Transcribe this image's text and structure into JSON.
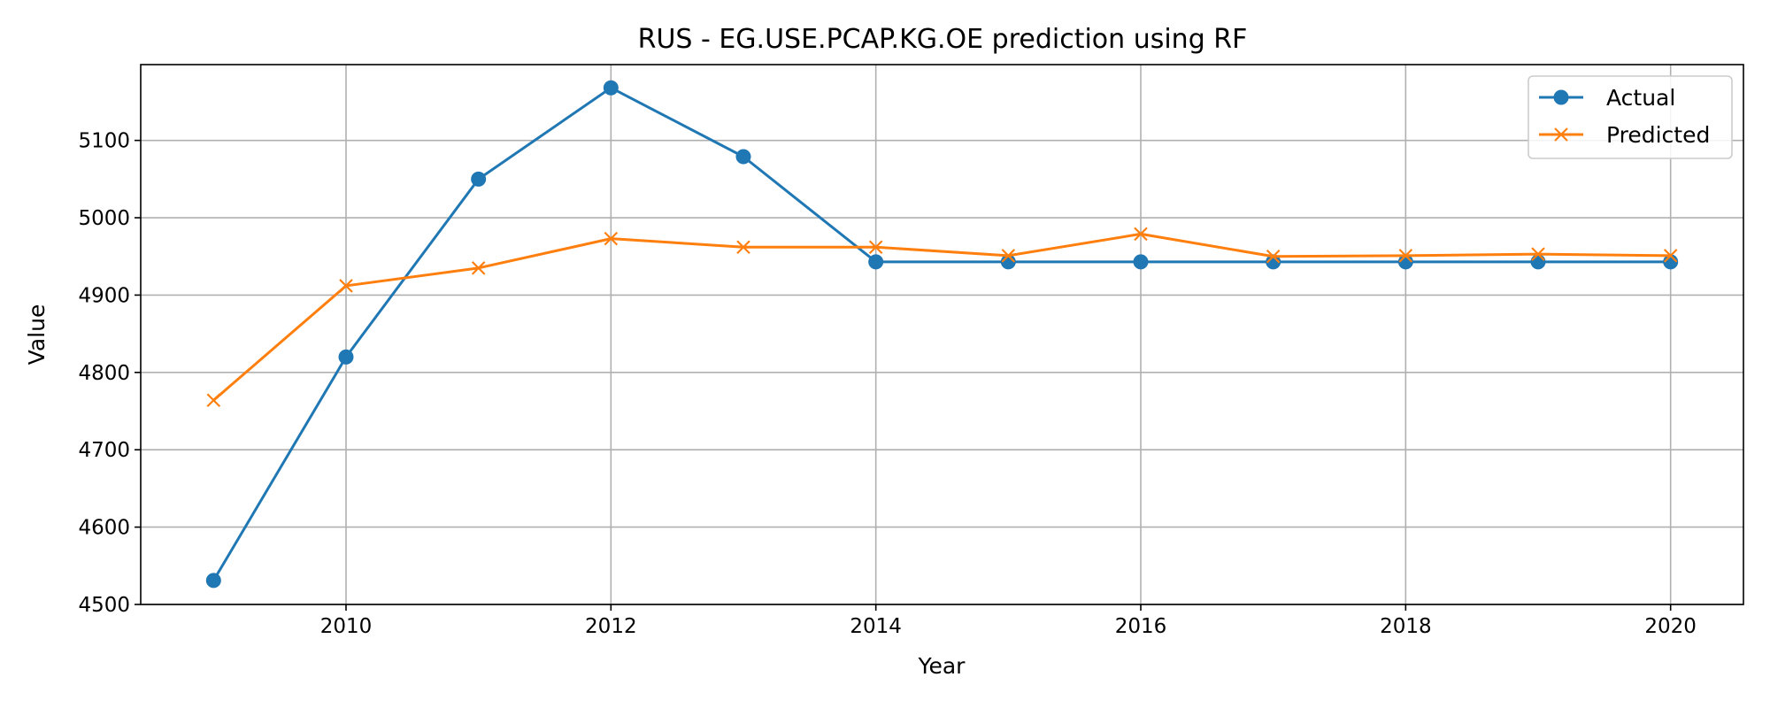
{
  "chart_data": {
    "type": "line",
    "title": "RUS - EG.USE.PCAP.KG.OE prediction using RF",
    "xlabel": "Year",
    "ylabel": "Value",
    "x": [
      2009,
      2010,
      2011,
      2012,
      2013,
      2014,
      2015,
      2016,
      2017,
      2018,
      2019,
      2020
    ],
    "xlim": [
      2008.45,
      2020.55
    ],
    "ylim": [
      4500,
      5198
    ],
    "x_ticks": [
      2010,
      2012,
      2014,
      2016,
      2018,
      2020
    ],
    "y_ticks": [
      4500,
      4600,
      4700,
      4800,
      4900,
      5000,
      5100
    ],
    "grid": true,
    "legend_position": "top-right",
    "series": [
      {
        "name": "Actual",
        "color": "#1f77b4",
        "marker": "circle",
        "values": [
          4531,
          4820,
          5050,
          5168,
          5079,
          4943,
          4943,
          4943,
          4943,
          4943,
          4943,
          4943
        ]
      },
      {
        "name": "Predicted",
        "color": "#ff7f0e",
        "marker": "x",
        "values": [
          4764,
          4912,
          4935,
          4973,
          4962,
          4962,
          4951,
          4979,
          4950,
          4951,
          4953,
          4951
        ]
      }
    ]
  }
}
